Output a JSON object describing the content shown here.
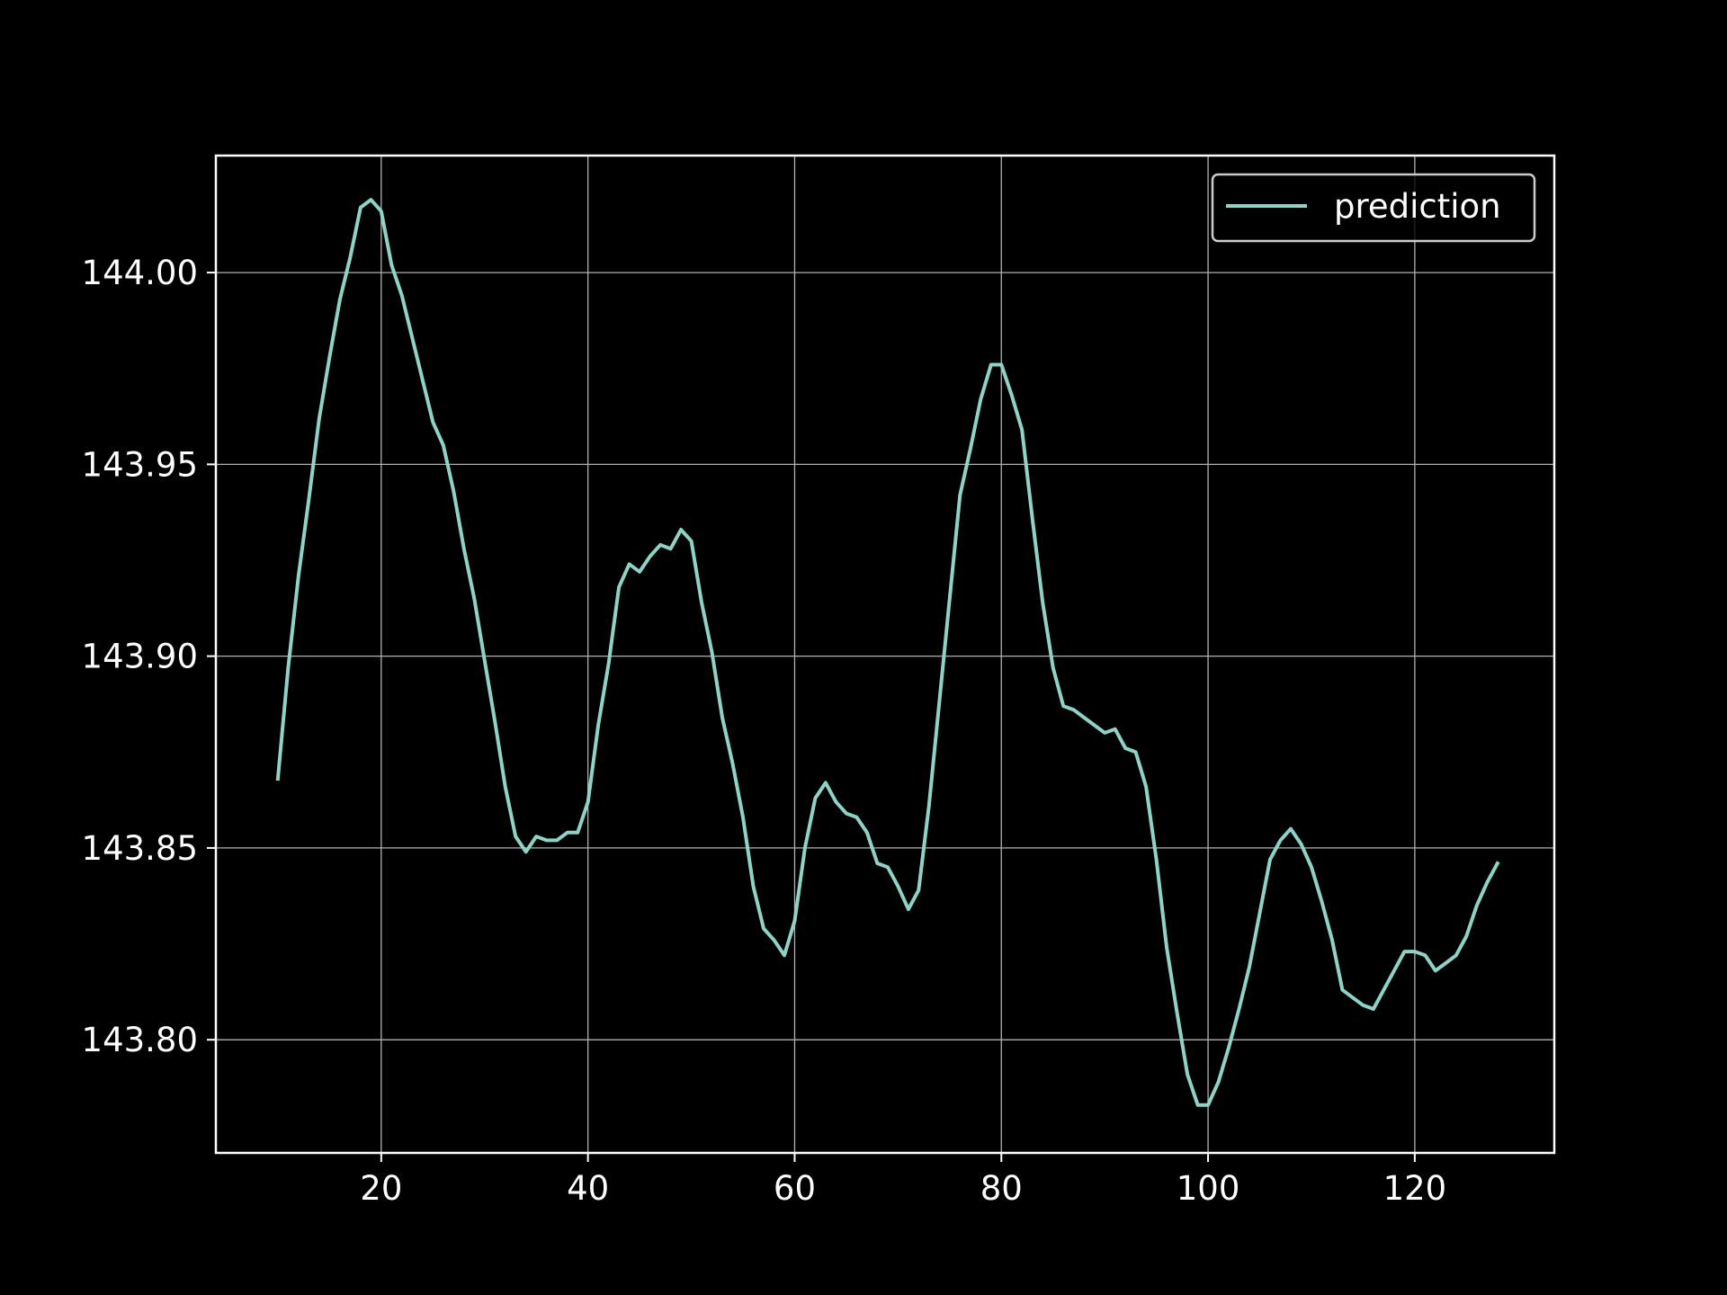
{
  "chart_data": {
    "type": "line",
    "title": "",
    "xlabel": "",
    "ylabel": "",
    "xlim": [
      4,
      133.5
    ],
    "ylim": [
      143.7705,
      144.0305
    ],
    "x_ticks": [
      20,
      40,
      60,
      80,
      100,
      120
    ],
    "x_tick_labels": [
      "20",
      "40",
      "60",
      "80",
      "100",
      "120"
    ],
    "y_ticks": [
      143.8,
      143.85,
      143.9,
      143.95,
      144.0
    ],
    "y_tick_labels": [
      "143.80",
      "143.85",
      "143.90",
      "143.95",
      "144.00"
    ],
    "grid": true,
    "legend_position": "upper right",
    "colors": {
      "background": "#000000",
      "axes": "#ffffff",
      "grid": "#b0b0b0",
      "line": "#8dd3c7",
      "legend_frame": "#cccccc"
    },
    "series": [
      {
        "name": "prediction",
        "x": [
          10,
          11,
          12,
          13,
          14,
          15,
          16,
          17,
          18,
          19,
          20,
          21,
          22,
          23,
          24,
          25,
          26,
          27,
          28,
          29,
          30,
          31,
          32,
          33,
          34,
          35,
          36,
          37,
          38,
          39,
          40,
          41,
          42,
          43,
          44,
          45,
          46,
          47,
          48,
          49,
          50,
          51,
          52,
          53,
          54,
          55,
          56,
          57,
          58,
          59,
          60,
          61,
          62,
          63,
          64,
          65,
          66,
          67,
          68,
          69,
          70,
          71,
          72,
          73,
          74,
          75,
          76,
          77,
          78,
          79,
          80,
          81,
          82,
          83,
          84,
          85,
          86,
          87,
          88,
          89,
          90,
          91,
          92,
          93,
          94,
          95,
          96,
          97,
          98,
          99,
          100,
          101,
          102,
          103,
          104,
          105,
          106,
          107,
          108,
          109,
          110,
          111,
          112,
          113,
          114,
          115,
          116,
          117,
          118,
          119,
          120,
          121,
          122,
          123,
          124,
          125,
          126,
          127,
          128
        ],
        "y": [
          143.868,
          143.897,
          143.921,
          143.941,
          143.962,
          143.978,
          143.993,
          144.004,
          144.017,
          144.019,
          144.016,
          144.002,
          143.994,
          143.983,
          143.972,
          143.961,
          143.955,
          143.943,
          143.928,
          143.915,
          143.899,
          143.883,
          143.866,
          143.853,
          143.849,
          143.853,
          143.852,
          143.852,
          143.854,
          143.854,
          143.862,
          143.882,
          143.898,
          143.918,
          143.924,
          143.922,
          143.926,
          143.929,
          143.928,
          143.933,
          143.93,
          143.914,
          143.901,
          143.884,
          143.872,
          143.858,
          143.84,
          143.829,
          143.826,
          143.822,
          143.831,
          143.85,
          143.863,
          143.867,
          143.862,
          143.859,
          143.858,
          143.854,
          143.846,
          143.845,
          143.84,
          143.834,
          143.839,
          143.861,
          143.888,
          143.915,
          143.942,
          143.954,
          143.967,
          143.976,
          143.976,
          143.968,
          143.959,
          143.936,
          143.914,
          143.897,
          143.887,
          143.886,
          143.884,
          143.882,
          143.88,
          143.881,
          143.876,
          143.875,
          143.866,
          143.847,
          143.824,
          143.807,
          143.791,
          143.783,
          143.783,
          143.789,
          143.798,
          143.808,
          143.819,
          143.833,
          143.847,
          143.852,
          143.855,
          143.851,
          143.845,
          143.836,
          143.826,
          143.813,
          143.811,
          143.809,
          143.808,
          143.813,
          143.818,
          143.823,
          143.823,
          143.822,
          143.818,
          143.82,
          143.822,
          143.827,
          143.835,
          143.841,
          143.846
        ]
      }
    ]
  }
}
